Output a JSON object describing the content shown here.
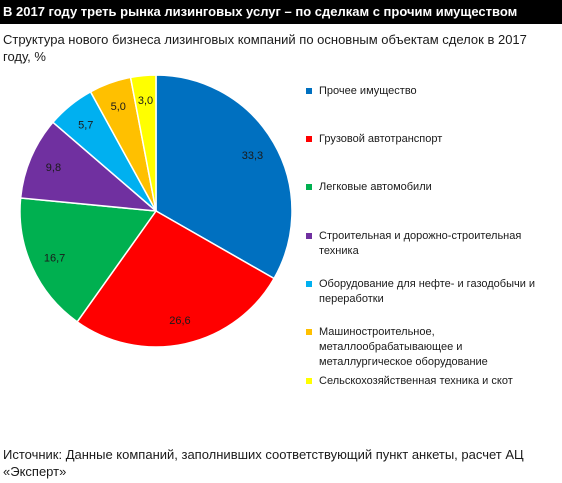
{
  "header": {
    "title": "В 2017 году треть рынка лизинговых услуг – по сделкам с прочим имуществом"
  },
  "footer": {
    "source": "Источник: Данные компаний, заполнивших соответствующий пункт анкеты, расчет АЦ «Эксперт»"
  },
  "chart_data": {
    "type": "pie",
    "title": "Структура нового бизнеса лизинговых компаний по основным объектам сделок в 2017 году, %",
    "legend_position": "right",
    "slices": [
      {
        "label": "Прочее имущество",
        "value": 33.3,
        "display": "33,3",
        "color": "#0070C0"
      },
      {
        "label": "Грузовой автотранспорт",
        "value": 26.6,
        "display": "26,6",
        "color": "#FF0000"
      },
      {
        "label": "Легковые автомобили",
        "value": 16.7,
        "display": "16,7",
        "color": "#00B050"
      },
      {
        "label": "Строительная и дорожно-строительная техника",
        "value": 9.8,
        "display": "9,8",
        "color": "#7030A0"
      },
      {
        "label": "Оборудование для нефте- и газодобычи и переработки",
        "value": 5.7,
        "display": "5,7",
        "color": "#00B0F0"
      },
      {
        "label": "Машиностроительное, металлообрабатывающее и металлургическое оборудование",
        "value": 5.0,
        "display": "5,0",
        "color": "#FFC000"
      },
      {
        "label": "Сельскохозяйственная техника и скот",
        "value": 3.0,
        "display": "3,0",
        "color": "#FFFF00"
      }
    ]
  }
}
